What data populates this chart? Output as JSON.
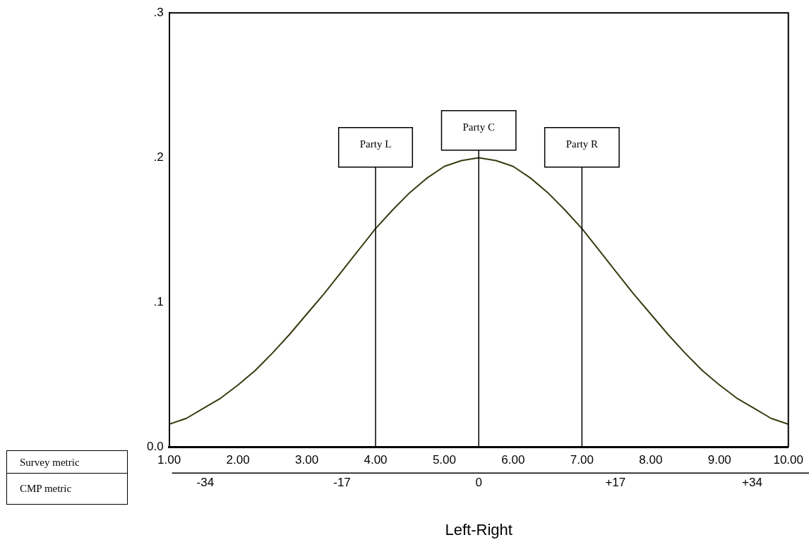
{
  "chart_data": {
    "type": "line",
    "xlabel": "Left-Right",
    "x": [
      1,
      1.25,
      1.5,
      1.75,
      2,
      2.25,
      2.5,
      2.75,
      3,
      3.25,
      3.5,
      3.75,
      4,
      4.25,
      4.5,
      4.75,
      5,
      5.25,
      5.5,
      5.75,
      6,
      6.25,
      6.5,
      6.75,
      7,
      7.25,
      7.5,
      7.75,
      8,
      8.25,
      8.5,
      8.75,
      9,
      9.25,
      9.5,
      9.75,
      10
    ],
    "series": [
      {
        "color": "#3a3a10",
        "values": [
          0.016,
          0.02,
          0.027,
          0.034,
          0.043,
          0.053,
          0.065,
          0.078,
          0.092,
          0.106,
          0.121,
          0.136,
          0.151,
          0.164,
          0.176,
          0.186,
          0.194,
          0.198,
          0.2,
          0.198,
          0.194,
          0.186,
          0.176,
          0.164,
          0.151,
          0.136,
          0.121,
          0.106,
          0.092,
          0.078,
          0.065,
          0.053,
          0.043,
          0.034,
          0.027,
          0.02,
          0.016
        ]
      }
    ],
    "xlim": [
      1,
      10
    ],
    "xticks": [
      {
        "value": 1,
        "label": "1.00"
      },
      {
        "value": 2,
        "label": "2.00"
      },
      {
        "value": 3,
        "label": "3.00"
      },
      {
        "value": 4,
        "label": "4.00"
      },
      {
        "value": 5,
        "label": "5.00"
      },
      {
        "value": 6,
        "label": "6.00"
      },
      {
        "value": 7,
        "label": "7.00"
      },
      {
        "value": 8,
        "label": "8.00"
      },
      {
        "value": 9,
        "label": "9.00"
      },
      {
        "value": 10,
        "label": "10.00"
      }
    ],
    "x2lim": [
      -38.5,
      38.5
    ],
    "x2ticks": [
      -34,
      -17,
      0,
      {
        "value": 17,
        "label": "+17"
      },
      {
        "value": 34,
        "label": "+34"
      }
    ],
    "ylim": [
      0,
      0.3
    ],
    "yticks": [
      {
        "value": 0,
        "label": "0.0"
      },
      {
        "value": 0.1,
        "label": ".1"
      },
      {
        "value": 0.2,
        "label": ".2"
      },
      {
        "value": 0.3,
        "label": ".3"
      }
    ],
    "ref_lines": [
      {
        "axis": "x",
        "value": 4,
        "label": "Party L",
        "color": "#000000"
      },
      {
        "axis": "x",
        "value": 5.5,
        "label": "Party C",
        "color": "#000000"
      },
      {
        "axis": "x",
        "value": 7,
        "label": "Party R",
        "color": "#000000"
      }
    ],
    "annotations": [
      "Survey metric",
      "CMP metric"
    ],
    "grid": false,
    "legend": false,
    "marker": "none",
    "line_style": "solid"
  }
}
